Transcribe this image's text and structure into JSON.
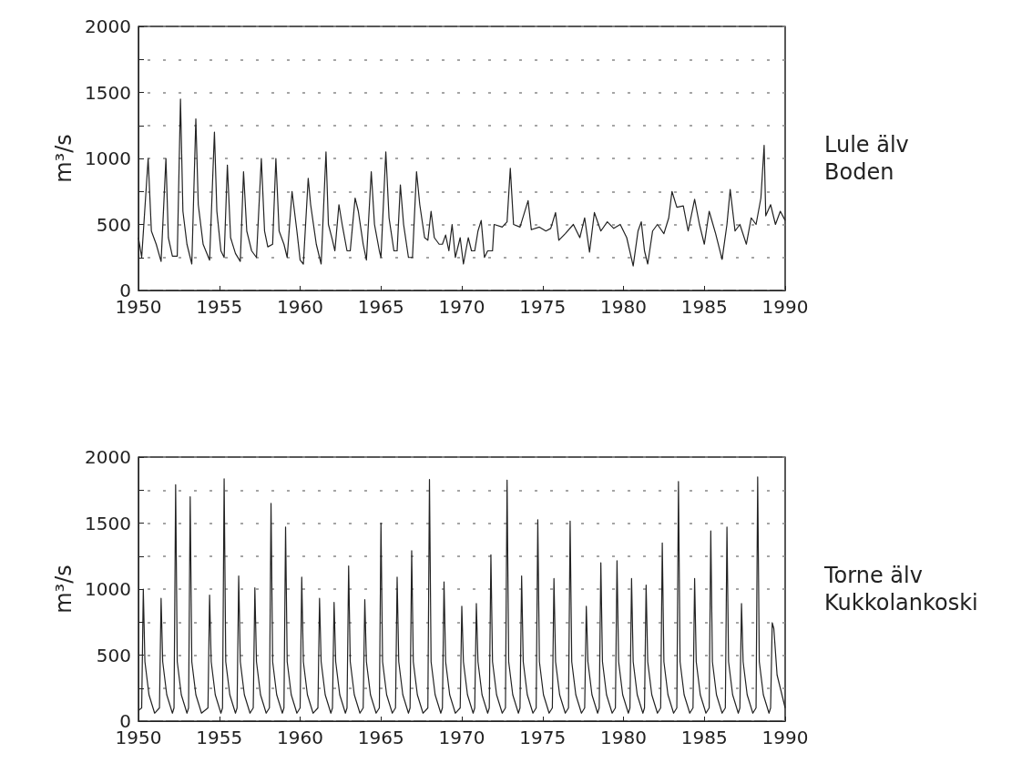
{
  "chart_data": [
    {
      "type": "line",
      "ylabel": "m³/s",
      "x": [
        1950.0,
        1950.2,
        1950.6,
        1950.8,
        1951.1,
        1951.4,
        1951.7,
        1951.85,
        1952.1,
        1952.4,
        1952.6,
        1952.75,
        1953.0,
        1953.3,
        1953.55,
        1953.7,
        1954.0,
        1954.4,
        1954.7,
        1954.85,
        1955.1,
        1955.3,
        1955.5,
        1955.7,
        1956.0,
        1956.3,
        1956.5,
        1956.7,
        1957.0,
        1957.3,
        1957.6,
        1957.8,
        1958.0,
        1958.3,
        1958.5,
        1958.7,
        1959.0,
        1959.2,
        1959.5,
        1959.8,
        1960.0,
        1960.2,
        1960.5,
        1960.65,
        1961.0,
        1961.3,
        1961.6,
        1961.75,
        1962.0,
        1962.15,
        1962.4,
        1962.6,
        1962.9,
        1963.1,
        1963.4,
        1963.6,
        1963.9,
        1964.1,
        1964.4,
        1964.6,
        1964.9,
        1965.0,
        1965.3,
        1965.5,
        1965.8,
        1966.0,
        1966.2,
        1966.4,
        1966.7,
        1966.95,
        1967.2,
        1967.4,
        1967.7,
        1967.9,
        1968.1,
        1968.3,
        1968.6,
        1968.8,
        1969.0,
        1969.2,
        1969.4,
        1969.6,
        1969.9,
        1970.1,
        1970.4,
        1970.6,
        1970.8,
        1971.0,
        1971.2,
        1971.4,
        1971.6,
        1971.9,
        1972.0,
        1972.5,
        1972.8,
        1973.0,
        1973.2,
        1973.6,
        1974.1,
        1974.3,
        1974.8,
        1975.2,
        1975.5,
        1975.8,
        1976.0,
        1976.4,
        1976.9,
        1977.3,
        1977.6,
        1977.9,
        1978.2,
        1978.6,
        1979.0,
        1979.4,
        1979.8,
        1980.2,
        1980.6,
        1980.9,
        1981.1,
        1981.3,
        1981.5,
        1981.8,
        1982.1,
        1982.5,
        1982.8,
        1983.0,
        1983.3,
        1983.7,
        1984.0,
        1984.4,
        1984.7,
        1985.0,
        1985.3,
        1985.7,
        1986.1,
        1986.4,
        1986.6,
        1986.9,
        1987.2,
        1987.6,
        1987.9,
        1988.2,
        1988.5,
        1988.7,
        1988.8,
        1989.1,
        1989.4,
        1989.7,
        1990.0
      ],
      "series": [
        {
          "name": "Lule älv\nBoden",
          "color": "#222222",
          "values": [
            400,
            250,
            1000,
            450,
            350,
            220,
            1000,
            400,
            260,
            260,
            1450,
            600,
            350,
            200,
            1300,
            650,
            350,
            230,
            1200,
            600,
            300,
            250,
            950,
            400,
            280,
            220,
            900,
            450,
            300,
            250,
            1000,
            450,
            330,
            350,
            1000,
            450,
            350,
            250,
            750,
            450,
            230,
            200,
            850,
            650,
            350,
            200,
            1050,
            500,
            380,
            300,
            650,
            500,
            300,
            300,
            700,
            600,
            350,
            230,
            900,
            500,
            300,
            250,
            1050,
            550,
            300,
            300,
            800,
            500,
            250,
            250,
            900,
            650,
            400,
            380,
            600,
            400,
            350,
            350,
            420,
            300,
            500,
            250,
            400,
            200,
            400,
            300,
            300,
            450,
            530,
            250,
            300,
            300,
            500,
            480,
            520,
            925,
            500,
            480,
            680,
            460,
            480,
            450,
            470,
            590,
            380,
            430,
            500,
            400,
            550,
            290,
            590,
            450,
            520,
            470,
            500,
            400,
            185,
            450,
            520,
            300,
            200,
            450,
            500,
            430,
            550,
            750,
            630,
            640,
            450,
            690,
            500,
            350,
            600,
            430,
            235,
            500,
            765,
            450,
            500,
            350,
            550,
            500,
            700,
            1100,
            565,
            650,
            500,
            600,
            530
          ]
        }
      ],
      "xlim": [
        1950,
        1990
      ],
      "xticks": [
        1950,
        1955,
        1960,
        1965,
        1970,
        1975,
        1980,
        1985,
        1990
      ],
      "ylim": [
        0,
        2000
      ],
      "yticks": [
        0,
        {
          "value": 250,
          "label": null
        },
        500,
        {
          "value": 750,
          "label": null
        },
        1000,
        {
          "value": 1250,
          "label": null
        },
        1500,
        {
          "value": 1750,
          "label": null
        },
        2000
      ],
      "grid": "y",
      "marker": "none",
      "line_style": "solid"
    },
    {
      "type": "line",
      "ylabel": "m³/s",
      "x": [
        1950.0,
        1950.2,
        1950.3,
        1950.4,
        1950.65,
        1951.0,
        1951.3,
        1951.4,
        1951.5,
        1951.75,
        1952.1,
        1952.2,
        1952.3,
        1952.4,
        1952.65,
        1953.0,
        1953.1,
        1953.2,
        1953.3,
        1953.55,
        1953.9,
        1954.3,
        1954.4,
        1954.5,
        1954.75,
        1955.1,
        1955.2,
        1955.3,
        1955.4,
        1955.65,
        1956.0,
        1956.1,
        1956.2,
        1956.3,
        1956.55,
        1956.9,
        1957.1,
        1957.2,
        1957.3,
        1957.55,
        1957.9,
        1958.1,
        1958.2,
        1958.3,
        1958.55,
        1958.9,
        1959.0,
        1959.1,
        1959.2,
        1959.45,
        1959.8,
        1960.0,
        1960.1,
        1960.2,
        1960.45,
        1960.8,
        1961.1,
        1961.2,
        1961.3,
        1961.55,
        1961.9,
        1962.0,
        1962.1,
        1962.2,
        1962.45,
        1962.8,
        1962.9,
        1963.0,
        1963.1,
        1963.35,
        1963.7,
        1963.9,
        1964.0,
        1964.1,
        1964.35,
        1964.7,
        1964.9,
        1965.0,
        1965.1,
        1965.35,
        1965.7,
        1965.9,
        1966.0,
        1966.1,
        1966.35,
        1966.7,
        1966.8,
        1966.9,
        1967.0,
        1967.25,
        1967.6,
        1967.9,
        1968.0,
        1968.1,
        1968.35,
        1968.7,
        1968.8,
        1968.9,
        1969.0,
        1969.25,
        1969.6,
        1969.9,
        1970.0,
        1970.1,
        1970.35,
        1970.7,
        1970.8,
        1970.9,
        1971.0,
        1971.25,
        1971.6,
        1971.7,
        1971.8,
        1971.9,
        1972.15,
        1972.5,
        1972.7,
        1972.8,
        1972.9,
        1973.15,
        1973.5,
        1973.6,
        1973.7,
        1973.8,
        1974.05,
        1974.4,
        1974.6,
        1974.7,
        1974.8,
        1975.05,
        1975.4,
        1975.6,
        1975.7,
        1975.8,
        1976.05,
        1976.4,
        1976.6,
        1976.7,
        1976.8,
        1977.05,
        1977.4,
        1977.6,
        1977.7,
        1977.8,
        1978.05,
        1978.4,
        1978.5,
        1978.6,
        1978.7,
        1978.95,
        1979.3,
        1979.5,
        1979.6,
        1979.7,
        1979.95,
        1980.3,
        1980.4,
        1980.5,
        1980.6,
        1980.85,
        1981.2,
        1981.3,
        1981.4,
        1981.5,
        1981.75,
        1982.1,
        1982.3,
        1982.4,
        1982.5,
        1982.75,
        1983.1,
        1983.3,
        1983.4,
        1983.5,
        1983.75,
        1984.1,
        1984.3,
        1984.4,
        1984.5,
        1984.75,
        1985.1,
        1985.3,
        1985.4,
        1985.5,
        1985.75,
        1986.1,
        1986.3,
        1986.4,
        1986.5,
        1986.75,
        1987.1,
        1987.2,
        1987.3,
        1987.4,
        1987.65,
        1988.0,
        1988.2,
        1988.3,
        1988.4,
        1988.65,
        1989.0,
        1989.1,
        1989.2,
        1989.3,
        1989.5,
        1989.8,
        1990.0
      ],
      "series": [
        {
          "name": "Torne älv\nKukkolankoski",
          "color": "#222222",
          "values": [
            80,
            100,
            1000,
            450,
            200,
            60,
            100,
            930,
            450,
            200,
            60,
            100,
            1790,
            450,
            200,
            60,
            100,
            1700,
            450,
            200,
            60,
            100,
            955,
            450,
            200,
            60,
            100,
            1835,
            450,
            200,
            60,
            100,
            1100,
            450,
            200,
            60,
            100,
            1010,
            450,
            200,
            60,
            100,
            1650,
            450,
            200,
            60,
            100,
            1470,
            450,
            200,
            60,
            100,
            1090,
            450,
            200,
            60,
            100,
            930,
            450,
            200,
            60,
            100,
            900,
            450,
            200,
            60,
            100,
            1175,
            450,
            200,
            60,
            100,
            920,
            450,
            200,
            60,
            100,
            1500,
            450,
            200,
            60,
            100,
            1090,
            450,
            200,
            60,
            100,
            1290,
            450,
            200,
            60,
            100,
            1830,
            450,
            200,
            60,
            100,
            1055,
            450,
            200,
            60,
            100,
            870,
            450,
            200,
            60,
            100,
            890,
            450,
            200,
            60,
            100,
            1260,
            450,
            200,
            60,
            100,
            1825,
            450,
            200,
            60,
            100,
            1100,
            450,
            200,
            60,
            100,
            1525,
            450,
            200,
            60,
            100,
            1080,
            450,
            200,
            60,
            100,
            1515,
            450,
            200,
            60,
            100,
            870,
            450,
            200,
            60,
            100,
            1200,
            450,
            200,
            60,
            100,
            1215,
            450,
            200,
            60,
            100,
            1080,
            450,
            200,
            60,
            100,
            1030,
            450,
            200,
            60,
            100,
            1350,
            450,
            200,
            60,
            100,
            1815,
            450,
            200,
            60,
            100,
            1080,
            450,
            200,
            60,
            100,
            1440,
            450,
            200,
            60,
            100,
            1470,
            450,
            200,
            60,
            100,
            890,
            450,
            200,
            60,
            100,
            1850,
            450,
            200,
            60,
            100,
            745,
            700,
            350,
            200,
            100
          ]
        }
      ],
      "xlim": [
        1950,
        1990
      ],
      "xticks": [
        1950,
        1955,
        1960,
        1965,
        1970,
        1975,
        1980,
        1985,
        1990
      ],
      "ylim": [
        0,
        2000
      ],
      "yticks": [
        0,
        {
          "value": 250,
          "label": null
        },
        500,
        {
          "value": 750,
          "label": null
        },
        1000,
        {
          "value": 1250,
          "label": null
        },
        1500,
        {
          "value": 1750,
          "label": null
        },
        2000
      ],
      "grid": "y",
      "marker": "none",
      "line_style": "solid"
    }
  ]
}
